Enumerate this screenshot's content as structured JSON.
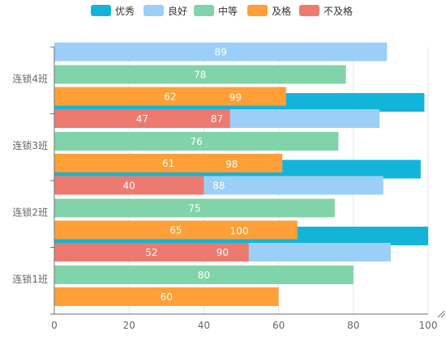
{
  "chart_data": {
    "type": "bar",
    "orientation": "horizontal",
    "stacked": false,
    "categories": [
      "连锁1班",
      "连锁2班",
      "连锁3班",
      "连锁4班"
    ],
    "series": [
      {
        "name": "优秀",
        "color": "#12b5d9",
        "values": [
          null,
          100,
          98,
          99
        ]
      },
      {
        "name": "良好",
        "color": "#9ccff7",
        "values": [
          90,
          88,
          87,
          89
        ]
      },
      {
        "name": "中等",
        "color": "#81d4a9",
        "values": [
          80,
          75,
          76,
          78
        ]
      },
      {
        "name": "及格",
        "color": "#ff9f37",
        "values": [
          60,
          65,
          61,
          62
        ]
      },
      {
        "name": "不及格",
        "color": "#ec7a6e",
        "values": [
          52,
          40,
          47,
          null
        ]
      }
    ],
    "xaxis": {
      "ticks": [
        0,
        20,
        40,
        60,
        80,
        100
      ],
      "range": [
        0,
        100
      ]
    },
    "grid": true,
    "legend_position": "top-center",
    "data_labels": true
  }
}
